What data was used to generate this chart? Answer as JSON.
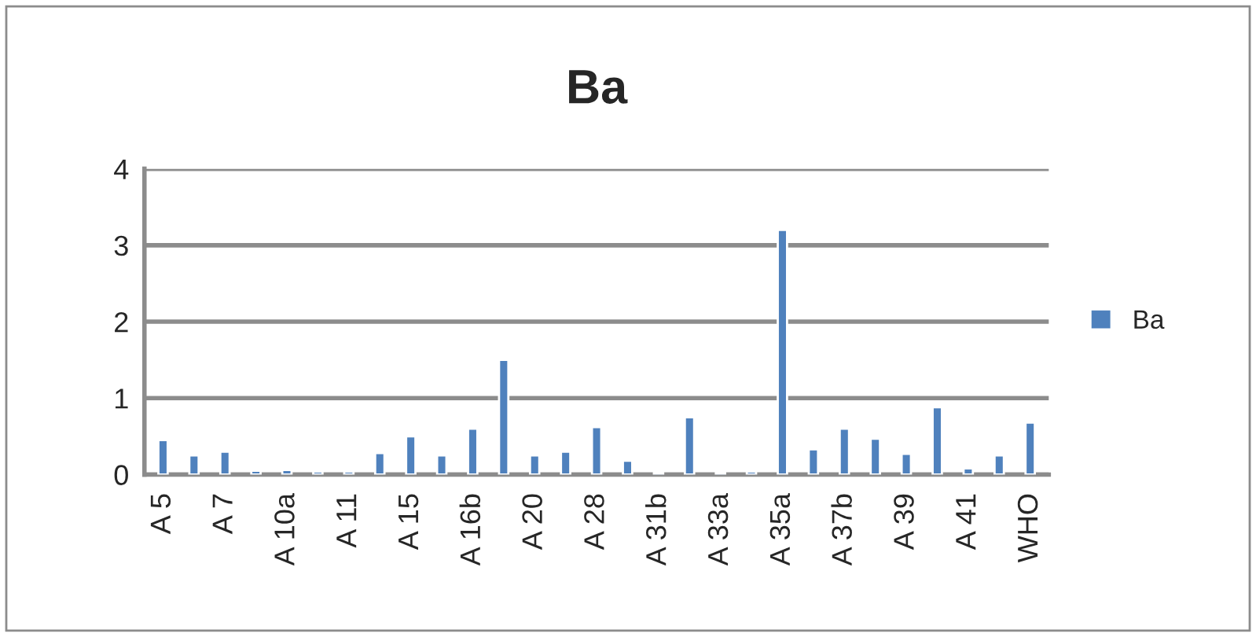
{
  "chart_data": {
    "type": "bar",
    "title": "Ba",
    "categories": [
      "A 5",
      null,
      "A 7",
      null,
      "A 10a",
      null,
      "A 11",
      null,
      "A 15",
      null,
      "A 16b",
      null,
      "A 20",
      null,
      "A 28",
      null,
      "A 31b",
      null,
      "A 33a",
      null,
      "A 35a",
      null,
      "A 37b",
      null,
      "A 39",
      null,
      "A 41",
      null,
      "WHO"
    ],
    "series": [
      {
        "name": "Ba",
        "color": "#4f81bd",
        "values": [
          0.45,
          0.25,
          0.3,
          0.05,
          0.06,
          0.04,
          0.04,
          0.28,
          0.5,
          0.25,
          0.6,
          1.5,
          0.25,
          0.3,
          0.62,
          0.18,
          0.03,
          0.75,
          0.03,
          0.04,
          3.2,
          0.33,
          0.6,
          0.47,
          0.27,
          0.88,
          0.08,
          0.25,
          0.68
        ]
      }
    ],
    "ylim": [
      0,
      4
    ],
    "yticks": [
      0,
      1,
      2,
      3,
      4
    ],
    "grid": "y",
    "legend": "right"
  }
}
